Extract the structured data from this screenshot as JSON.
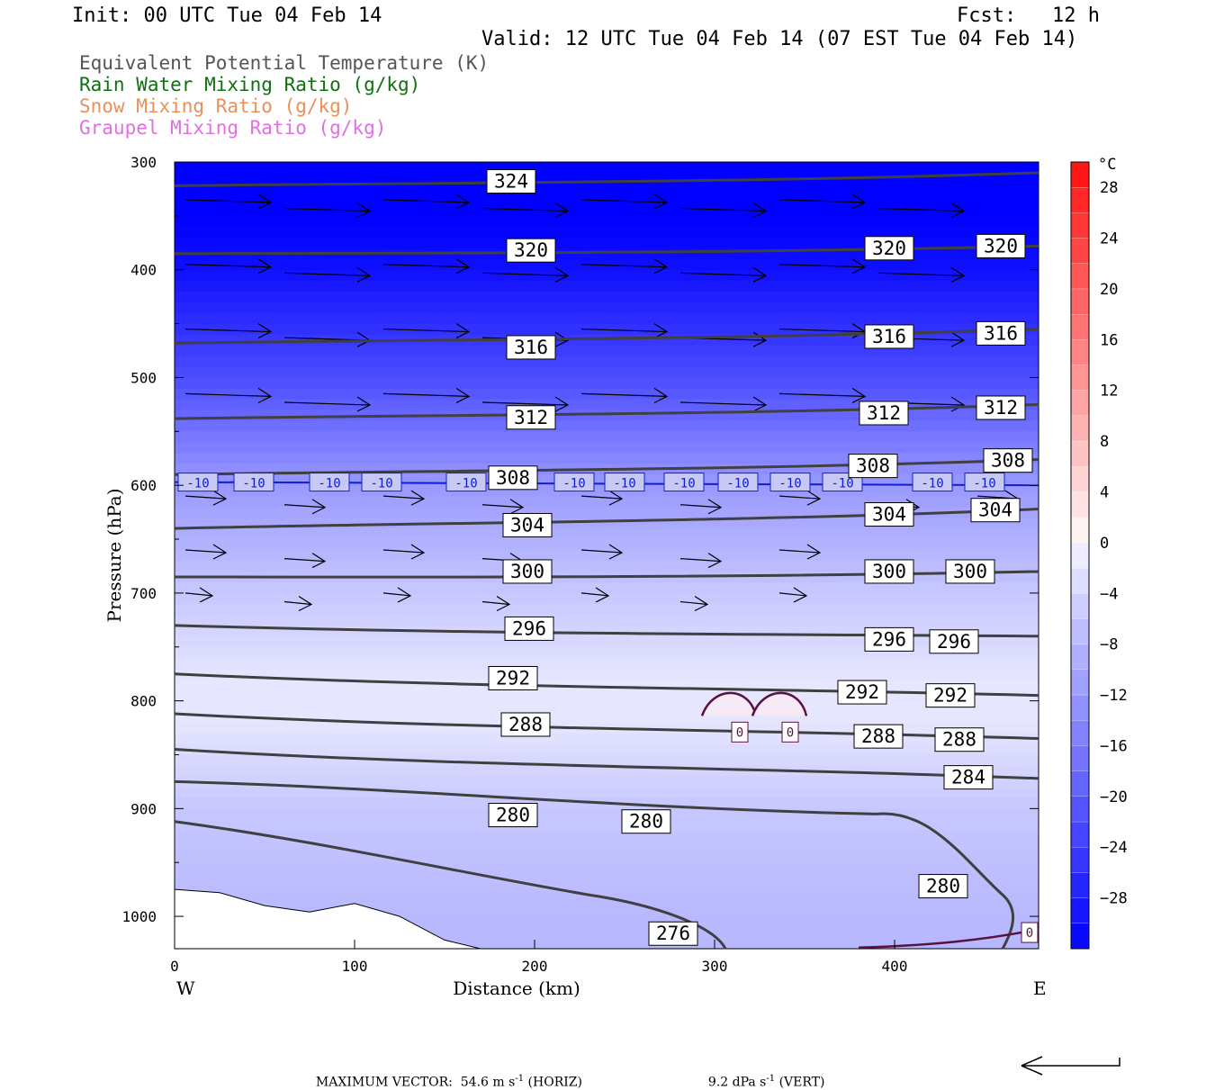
{
  "header": {
    "init": "Init: 00 UTC Tue 04 Feb 14",
    "fcst": "Fcst:   12 h",
    "valid": "Valid: 12 UTC Tue 04 Feb 14 (07 EST Tue 04 Feb 14)"
  },
  "legend": [
    {
      "text": "Equivalent Potential Temperature (K)",
      "color": "#555555"
    },
    {
      "text": "Rain Water Mixing Ratio (g/kg)",
      "color": "#107010"
    },
    {
      "text": "Snow Mixing Ratio (g/kg)",
      "color": "#e8905a"
    },
    {
      "text": "Graupel Mixing Ratio (g/kg)",
      "color": "#e070e0"
    }
  ],
  "footer": {
    "max_vector_label": "MAXIMUM VECTOR:",
    "horiz": "54.6 m s",
    "horiz_unit": "(HORIZ)",
    "vert": "9.2 dPa s",
    "vert_unit": "(VERT)",
    "exponent": "-1"
  },
  "chart_data": {
    "type": "contour",
    "xlabel": "Distance (km)",
    "ylabel": "Pressure (hPa)",
    "xlim": [
      0,
      480
    ],
    "ylim": [
      1030,
      300
    ],
    "x_ticks": [
      0,
      100,
      200,
      300,
      400
    ],
    "y_ticks": [
      300,
      400,
      500,
      600,
      700,
      800,
      900,
      1000
    ],
    "x_end_labels": {
      "left": "W",
      "right": "E"
    },
    "colorbar": {
      "unit": "°C",
      "tick_labels": [
        28,
        24,
        20,
        16,
        12,
        8,
        4,
        0,
        -4,
        -8,
        -12,
        -16,
        -20,
        -24,
        -28
      ],
      "levels_top_to_bottom": [
        30,
        28,
        26,
        24,
        22,
        20,
        18,
        16,
        14,
        12,
        10,
        8,
        6,
        4,
        2,
        0,
        -2,
        -4,
        -6,
        -8,
        -10,
        -12,
        -14,
        -16,
        -18,
        -20,
        -22,
        -24,
        -26,
        -28,
        -30,
        -32
      ]
    },
    "temperature_shading": [
      {
        "p": 300,
        "t": -34
      },
      {
        "p": 400,
        "t": -30
      },
      {
        "p": 500,
        "t": -22
      },
      {
        "p": 600,
        "t": -12
      },
      {
        "p": 700,
        "t": -6
      },
      {
        "p": 780,
        "t": -2
      },
      {
        "p": 820,
        "t": -2
      },
      {
        "p": 900,
        "t": -6
      },
      {
        "p": 1000,
        "t": -8
      }
    ],
    "theta_e_contours": [
      {
        "value": 324,
        "p_west": 322,
        "p_east": 310
      },
      {
        "value": 320,
        "p_west": 385,
        "p_east": 378
      },
      {
        "value": 316,
        "p_west": 468,
        "p_east": 455
      },
      {
        "value": 312,
        "p_west": 538,
        "p_east": 525
      },
      {
        "value": 308,
        "p_west": 590,
        "p_east": 576
      },
      {
        "value": 304,
        "p_west": 640,
        "p_east": 622
      },
      {
        "value": 300,
        "p_west": 685,
        "p_east": 680
      },
      {
        "value": 296,
        "p_west": 730,
        "p_east": 740
      },
      {
        "value": 292,
        "p_west": 775,
        "p_east": 795
      },
      {
        "value": 288,
        "p_west": 812,
        "p_east": 835
      },
      {
        "value": 284,
        "p_west": 845,
        "p_east": 872
      },
      {
        "value": 280,
        "p_west": 875,
        "p_east": 1030
      },
      {
        "value": 276,
        "p_west": 912,
        "p_east": 1030
      }
    ],
    "theta_e_labels": [
      {
        "text": "324",
        "x": 187,
        "p": 318
      },
      {
        "text": "320",
        "x": 198,
        "p": 382
      },
      {
        "text": "320",
        "x": 397,
        "p": 380
      },
      {
        "text": "320",
        "x": 459,
        "p": 378
      },
      {
        "text": "316",
        "x": 198,
        "p": 472
      },
      {
        "text": "316",
        "x": 397,
        "p": 462
      },
      {
        "text": "316",
        "x": 459,
        "p": 459
      },
      {
        "text": "312",
        "x": 198,
        "p": 537
      },
      {
        "text": "312",
        "x": 394,
        "p": 533
      },
      {
        "text": "312",
        "x": 459,
        "p": 528
      },
      {
        "text": "308",
        "x": 188,
        "p": 593
      },
      {
        "text": "308",
        "x": 388,
        "p": 582
      },
      {
        "text": "308",
        "x": 463,
        "p": 577
      },
      {
        "text": "304",
        "x": 196,
        "p": 637
      },
      {
        "text": "304",
        "x": 397,
        "p": 627
      },
      {
        "text": "304",
        "x": 456,
        "p": 623
      },
      {
        "text": "300",
        "x": 196,
        "p": 680
      },
      {
        "text": "300",
        "x": 397,
        "p": 680
      },
      {
        "text": "300",
        "x": 442,
        "p": 680
      },
      {
        "text": "296",
        "x": 197,
        "p": 733
      },
      {
        "text": "296",
        "x": 397,
        "p": 743
      },
      {
        "text": "296",
        "x": 433,
        "p": 745
      },
      {
        "text": "292",
        "x": 188,
        "p": 779
      },
      {
        "text": "292",
        "x": 382,
        "p": 792
      },
      {
        "text": "292",
        "x": 431,
        "p": 795
      },
      {
        "text": "288",
        "x": 195,
        "p": 822
      },
      {
        "text": "288",
        "x": 391,
        "p": 833
      },
      {
        "text": "288",
        "x": 436,
        "p": 836
      },
      {
        "text": "284",
        "x": 441,
        "p": 871
      },
      {
        "text": "280",
        "x": 188,
        "p": 906
      },
      {
        "text": "280",
        "x": 262,
        "p": 912
      },
      {
        "text": "280",
        "x": 427,
        "p": 972
      },
      {
        "text": "276",
        "x": 277,
        "p": 1016
      }
    ],
    "isotherm_minus10": {
      "value": -10,
      "label_x_km": [
        13,
        44,
        86,
        115,
        162,
        222,
        250,
        283,
        313,
        342,
        371,
        421,
        450
      ],
      "p": 597
    },
    "rain_water_contours": [
      {
        "value": "0",
        "x_km": 314,
        "p": 829
      },
      {
        "value": "0",
        "x_km": 342,
        "p": 829
      },
      {
        "value": "0",
        "x_km": 475,
        "p": 1015
      }
    ]
  }
}
